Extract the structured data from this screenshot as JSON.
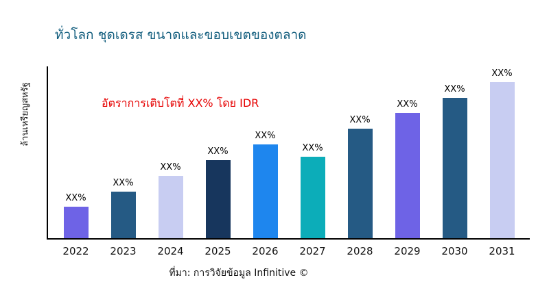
{
  "title": "ทั่วโลก ชุดเดรส ขนาดและขอบเขตของตลาด",
  "ylabel": "ล้านเหรียญสหรัฐ",
  "annotation": "อัตราการเติบโตที่ XX% โดย IDR",
  "source": "ที่มา: การวิจัยข้อมูล Infinitive ©",
  "colors": {
    "title": "#135e7e",
    "annotation_red": "#e60000",
    "axis": "#000000"
  },
  "chart_data": {
    "type": "bar",
    "title": "ทั่วโลก ชุดเดรส ขนาดและขอบเขตของตลาด",
    "xlabel": "",
    "ylabel": "ล้านเหรียญสหรัฐ",
    "categories": [
      "2022",
      "2023",
      "2024",
      "2025",
      "2026",
      "2027",
      "2028",
      "2029",
      "2030",
      "2031"
    ],
    "values": [
      20,
      30,
      40,
      50,
      60,
      52,
      70,
      80,
      90,
      100
    ],
    "ymax": 110,
    "bar_labels": [
      "XX%",
      "XX%",
      "XX%",
      "XX%",
      "XX%",
      "XX%",
      "XX%",
      "XX%",
      "XX%",
      "XX%"
    ],
    "bar_colors": [
      "#6e63e6",
      "#255a84",
      "#c8cdf2",
      "#17365d",
      "#1e86ee",
      "#0cadb9",
      "#255a84",
      "#6e63e6",
      "#255a84",
      "#c8cdf2"
    ],
    "grid": false,
    "legend": "none",
    "annotation": "อัตราการเติบโตที่ XX% โดย IDR"
  }
}
